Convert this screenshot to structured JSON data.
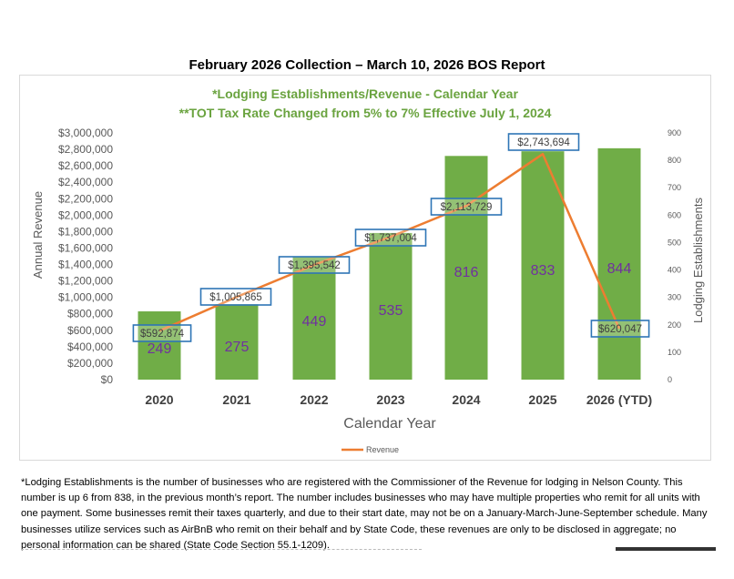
{
  "report_title": "February 2026 Collection – March 10, 2026 BOS Report",
  "chart_data": {
    "type": "bar+line",
    "title": "*Lodging Establishments/Revenue - Calendar Year",
    "subtitle": "**TOT Tax Rate Changed from 5% to 7% Effective July 1, 2024",
    "categories": [
      "2020",
      "2021",
      "2022",
      "2023",
      "2024",
      "2025",
      "2026 (YTD)"
    ],
    "xlabel": "Calendar Year",
    "ylabel_left": "Annual Revenue",
    "ylabel_right": "Lodging Establishments",
    "left_axis": {
      "ylim": [
        0,
        3000000
      ],
      "ticks": [
        "$0",
        "$200,000",
        "$400,000",
        "$600,000",
        "$800,000",
        "$1,000,000",
        "$1,200,000",
        "$1,400,000",
        "$1,600,000",
        "$1,800,000",
        "$2,000,000",
        "$2,200,000",
        "$2,400,000",
        "$2,600,000",
        "$2,800,000",
        "$3,000,000"
      ]
    },
    "right_axis": {
      "ylim": [
        0,
        900
      ],
      "ticks": [
        "0",
        "100",
        "200",
        "300",
        "400",
        "500",
        "600",
        "700",
        "800",
        "900"
      ]
    },
    "series": [
      {
        "name": "Lodging Establishments",
        "kind": "bar",
        "axis": "right",
        "color": "#70ad47",
        "values": [
          249,
          275,
          449,
          535,
          816,
          833,
          844
        ],
        "labels": [
          "249",
          "275",
          "449",
          "535",
          "816",
          "833",
          "844"
        ]
      },
      {
        "name": "Revenue",
        "kind": "line",
        "axis": "left",
        "color": "#ed7d31",
        "values": [
          592874,
          1005865,
          1395542,
          1737004,
          2113729,
          2743694,
          620047
        ],
        "labels": [
          "$592,874",
          "$1,005,865",
          "$1,395,542",
          "$1,737,004",
          "$2,113,729",
          "$2,743,694",
          "$620,047"
        ]
      }
    ],
    "legend": {
      "position": "bottom",
      "entries": [
        "Revenue"
      ]
    },
    "colors": {
      "label_box_border": "#2e75b6",
      "bar_label": "#7030a0",
      "title": "#6aa33f"
    }
  },
  "footnote": "*Lodging Establishments is the number of businesses who are registered with the Commissioner of the Revenue for lodging in Nelson County. This number is up 6 from 838, in the previous month’s report. The number includes businesses who may have multiple properties who remit for all units with one payment. Some businesses remit their taxes quarterly, and due to their start date, may not be on a January-March-June-September schedule. Many businesses utilize services such as AirBnB who remit on their behalf and by State Code, these revenues are only to be disclosed in aggregate; no personal information can be shared (State Code Section 55.1-1209)."
}
